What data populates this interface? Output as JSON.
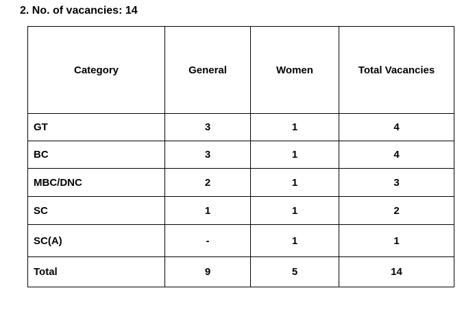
{
  "heading": "2. No. of vacancies: 14",
  "table": {
    "header": [
      "Category",
      "General",
      "Women",
      "Total Vacancies"
    ],
    "rows": [
      [
        "GT",
        "3",
        "1",
        "4"
      ],
      [
        "BC",
        "3",
        "1",
        "4"
      ],
      [
        "MBC/DNC",
        "2",
        "1",
        "3"
      ],
      [
        "SC",
        "1",
        "1",
        "2"
      ],
      [
        "SC(A)",
        "-",
        "1",
        "1"
      ],
      [
        "Total",
        "9",
        "5",
        "14"
      ]
    ]
  }
}
